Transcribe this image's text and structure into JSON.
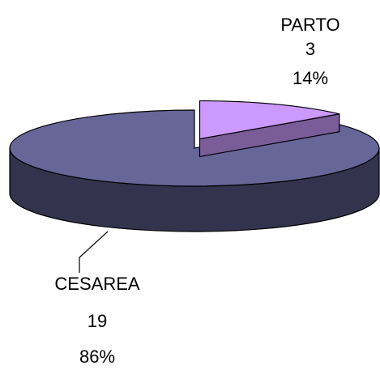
{
  "chart_data": {
    "type": "pie3d",
    "categories": [
      "PARTO",
      "CESAREA"
    ],
    "values": [
      3,
      19
    ],
    "percents": [
      14,
      86
    ],
    "percent_labels": [
      "14%",
      "86%"
    ],
    "colors": [
      "#cc99ff",
      "#666699"
    ]
  }
}
